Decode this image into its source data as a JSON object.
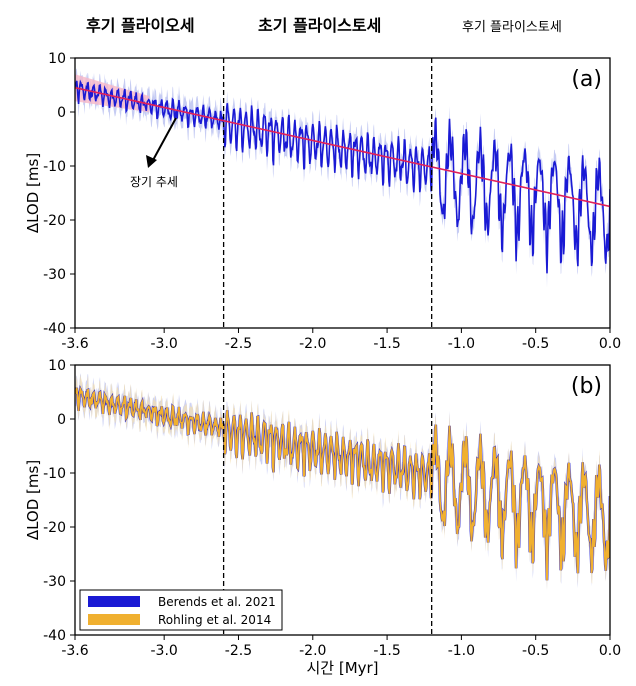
{
  "epochs": [
    "후기 플라이오세",
    "초기 플라이스토세",
    "후기 플라이스토세"
  ],
  "colors": {
    "berends": "#1a1ad4",
    "berends_band": "#b8bff0",
    "rohling": "#f0b030",
    "rohling_band": "#f5dfb0",
    "trend": "#e0205a",
    "trend_band": "#f7b8c8"
  },
  "chart_data": [
    {
      "type": "line",
      "panel": "(a)",
      "xlabel": "",
      "ylabel": "ΔLOD [ms]",
      "xlim": [
        -3.6,
        0.0
      ],
      "ylim": [
        -40,
        10
      ],
      "xticks": [
        -3.6,
        -3.0,
        -2.5,
        -2.0,
        -1.5,
        -1.0,
        -0.5,
        0.0
      ],
      "xtick_labels": [
        "-3.6",
        "-3.0",
        "-2.5",
        "-2.0",
        "-1.5",
        "-1.0",
        "-0.5",
        "0.0"
      ],
      "yticks": [
        10,
        0,
        -10,
        -20,
        -30,
        -40
      ],
      "ytick_labels": [
        "10",
        "0",
        "-10",
        "-20",
        "-30",
        "-40"
      ],
      "boundaries": [
        -2.6,
        -1.2
      ],
      "trend": {
        "name": "장기 추세",
        "x": [
          -3.6,
          0.0
        ],
        "y": [
          4.5,
          -17.5
        ]
      },
      "annotation": "장기 추세",
      "series": [
        {
          "name": "Berends et al. 2021"
        }
      ]
    },
    {
      "type": "line",
      "panel": "(b)",
      "xlabel": "시간 [Myr]",
      "ylabel": "ΔLOD [ms]",
      "xlim": [
        -3.6,
        0.0
      ],
      "ylim": [
        -40,
        10
      ],
      "xticks": [
        -3.6,
        -3.0,
        -2.5,
        -2.0,
        -1.5,
        -1.0,
        -0.5,
        0.0
      ],
      "xtick_labels": [
        "-3.6",
        "-3.0",
        "-2.5",
        "-2.0",
        "-1.5",
        "-1.0",
        "-0.5",
        "0.0"
      ],
      "yticks": [
        10,
        0,
        -10,
        -20,
        -30,
        -40
      ],
      "ytick_labels": [
        "10",
        "0",
        "-10",
        "-20",
        "-30",
        "-40"
      ],
      "boundaries": [
        -2.6,
        -1.2
      ],
      "series": [
        {
          "name": "Berends et al. 2021"
        },
        {
          "name": "Rohling et al. 2014"
        }
      ],
      "legend": [
        "Berends et al. 2021",
        "Rohling et al. 2014"
      ],
      "legend_position": "bottom-left"
    }
  ]
}
